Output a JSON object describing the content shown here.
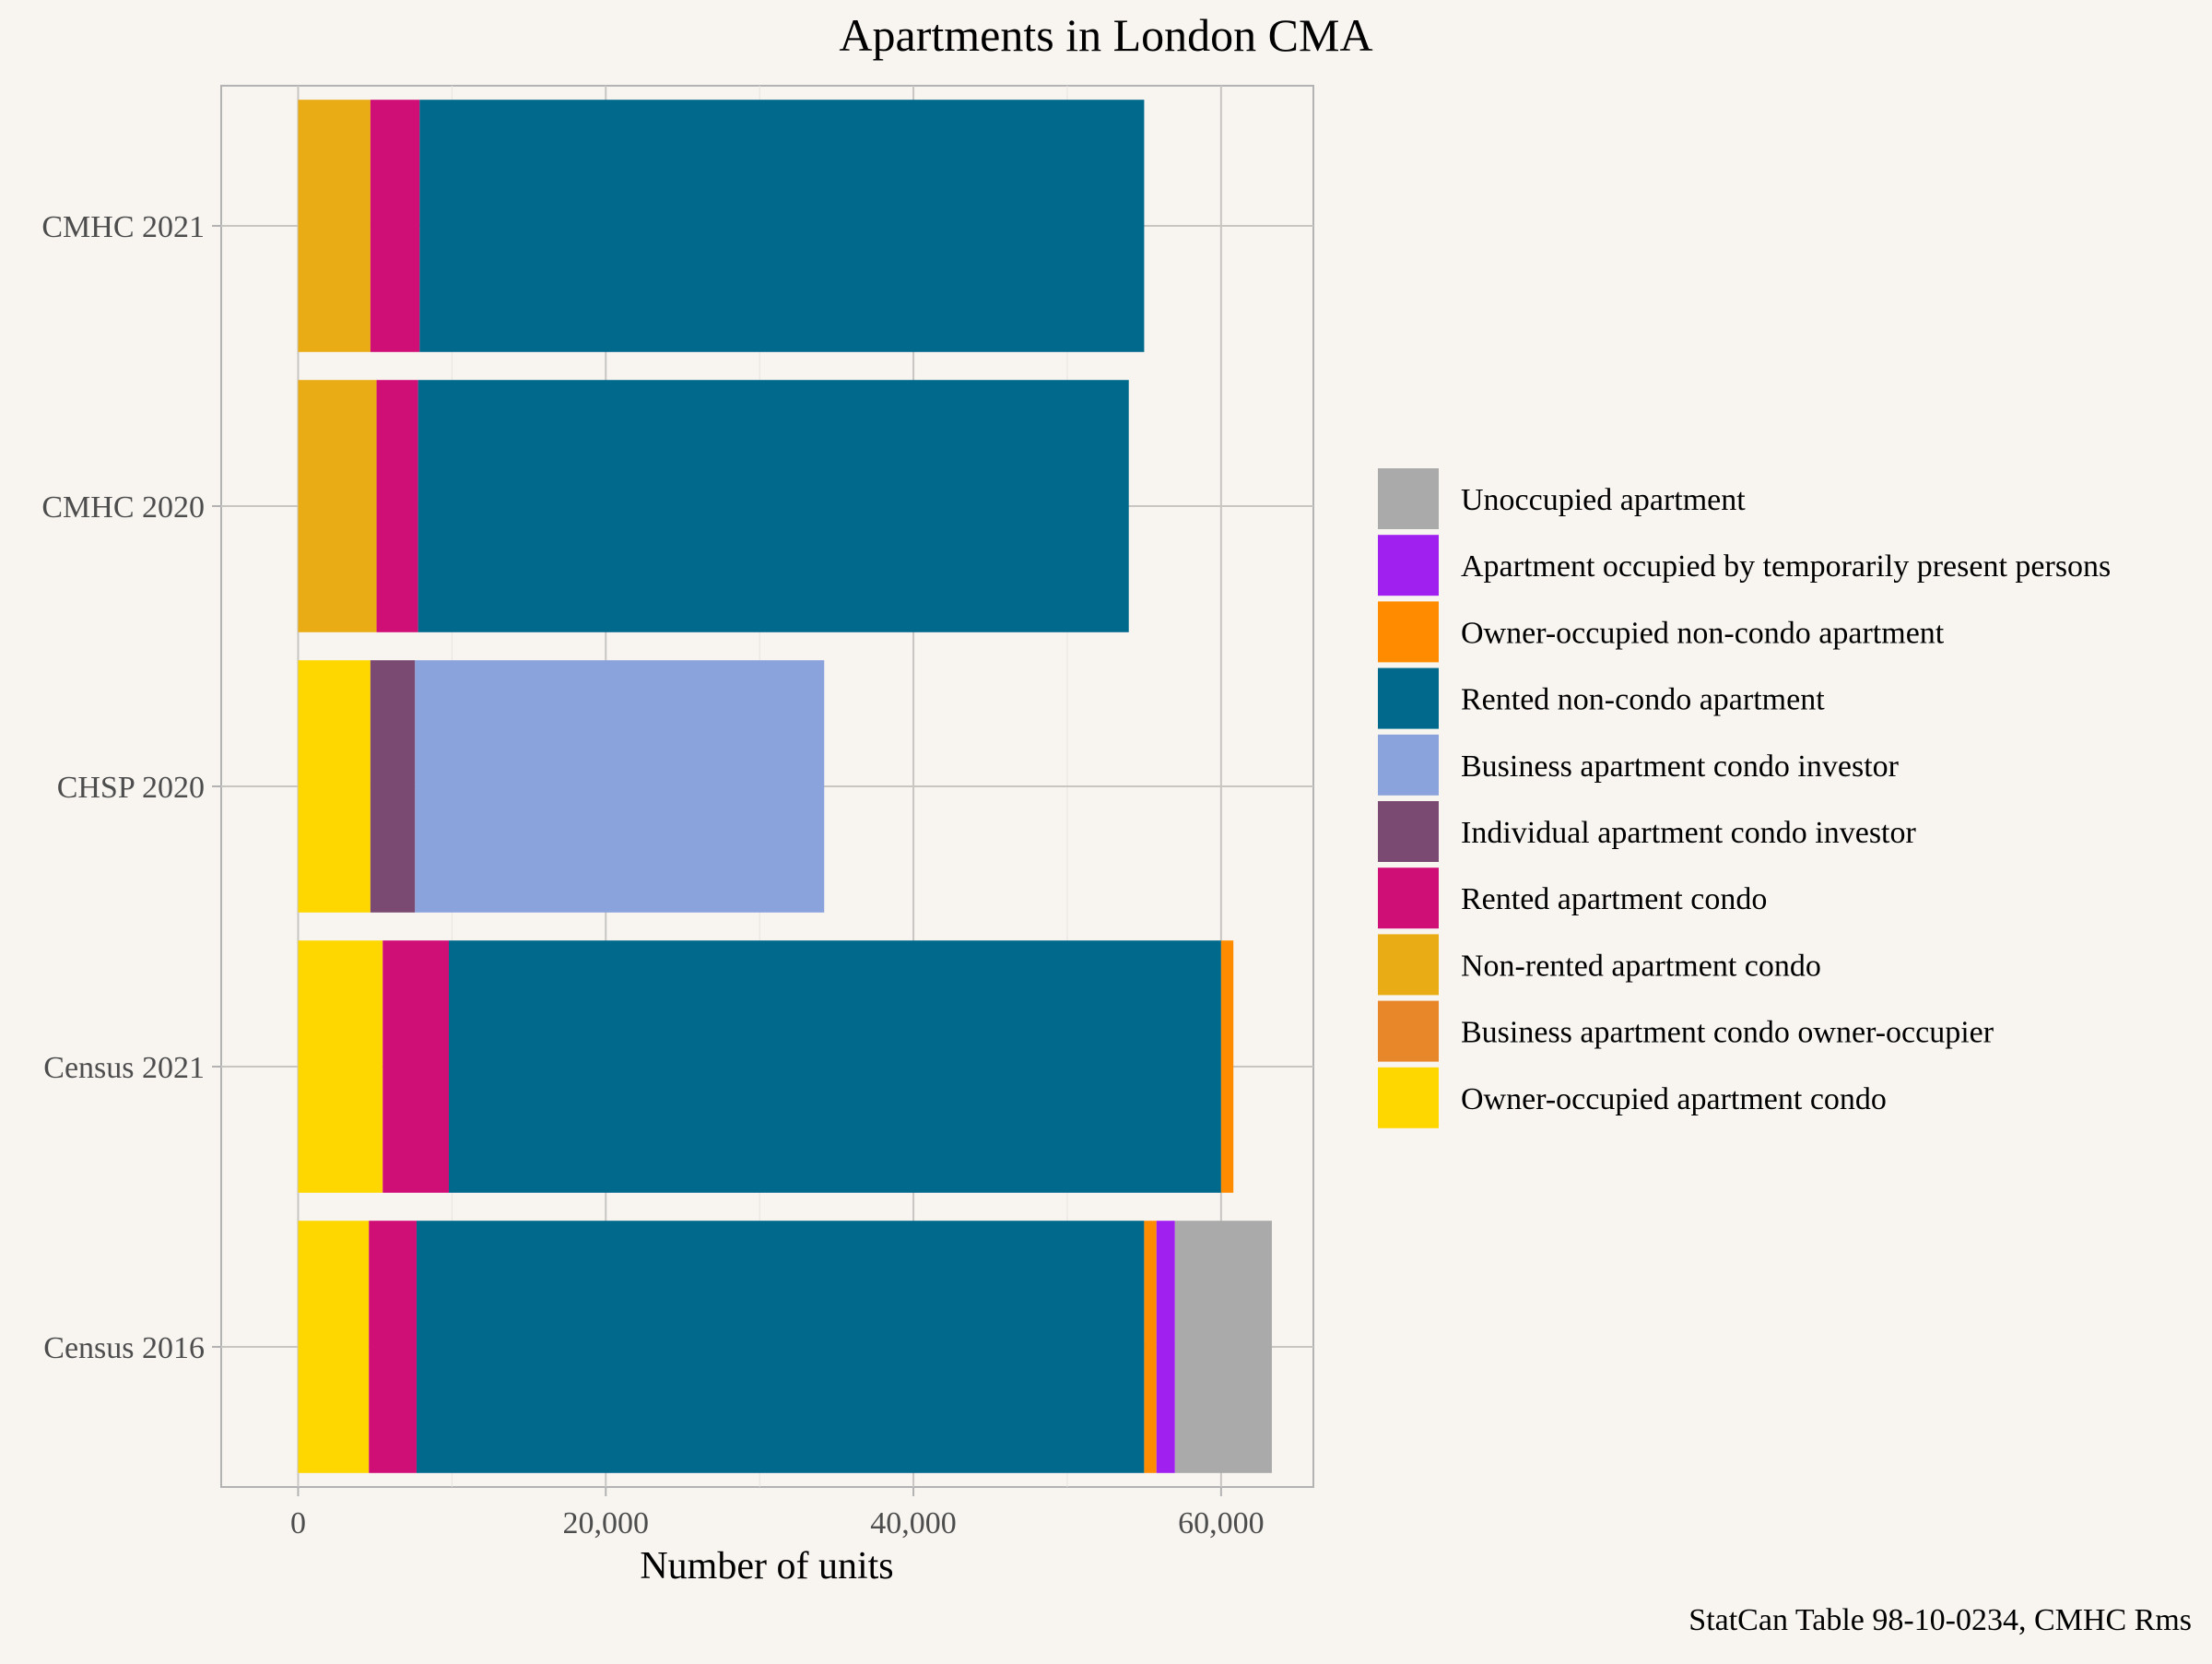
{
  "chart_data": {
    "type": "bar",
    "orientation": "horizontal",
    "stacked": true,
    "title": "Apartments in London CMA",
    "xlabel": "Number of units",
    "ylabel": "",
    "caption": "StatCan Table 98-10-0234, CMHC Rms",
    "xlim": [
      -5000,
      66000
    ],
    "x_ticks": [
      0,
      20000,
      40000,
      60000
    ],
    "x_tick_labels": [
      "0",
      "20,000",
      "40,000",
      "60,000"
    ],
    "grid": true,
    "legend_position": "right",
    "categories": [
      "Census 2016",
      "Census 2021",
      "CHSP 2020",
      "CMHC 2020",
      "CMHC 2021"
    ],
    "series": [
      {
        "name": "Owner-occupied apartment condo",
        "color": "#FFD700",
        "values": [
          4600,
          5500,
          4700,
          0,
          0
        ]
      },
      {
        "name": "Business apartment condo owner-occupier",
        "color": "#E8862A",
        "values": [
          0,
          0,
          0,
          0,
          0
        ]
      },
      {
        "name": "Non-rented apartment condo",
        "color": "#EAAC14",
        "values": [
          0,
          0,
          0,
          5100,
          4700
        ]
      },
      {
        "name": "Rented apartment condo",
        "color": "#CF0F76",
        "values": [
          3100,
          4300,
          0,
          2700,
          3200
        ]
      },
      {
        "name": "Individual apartment condo investor",
        "color": "#7A4A72",
        "values": [
          0,
          0,
          2900,
          0,
          0
        ]
      },
      {
        "name": "Business apartment condo investor",
        "color": "#8AA3DC",
        "values": [
          0,
          0,
          26600,
          0,
          0
        ]
      },
      {
        "name": "Rented non-condo apartment",
        "color": "#00698C",
        "values": [
          47300,
          50200,
          0,
          46200,
          47100
        ]
      },
      {
        "name": "Owner-occupied non-condo apartment",
        "color": "#FF8C00",
        "values": [
          800,
          800,
          0,
          0,
          0
        ]
      },
      {
        "name": "Apartment occupied by temporarily present persons",
        "color": "#A020F0",
        "values": [
          1200,
          0,
          0,
          0,
          0
        ]
      },
      {
        "name": "Unoccupied apartment",
        "color": "#AAAAAA",
        "values": [
          6300,
          0,
          0,
          0,
          0
        ]
      }
    ]
  }
}
